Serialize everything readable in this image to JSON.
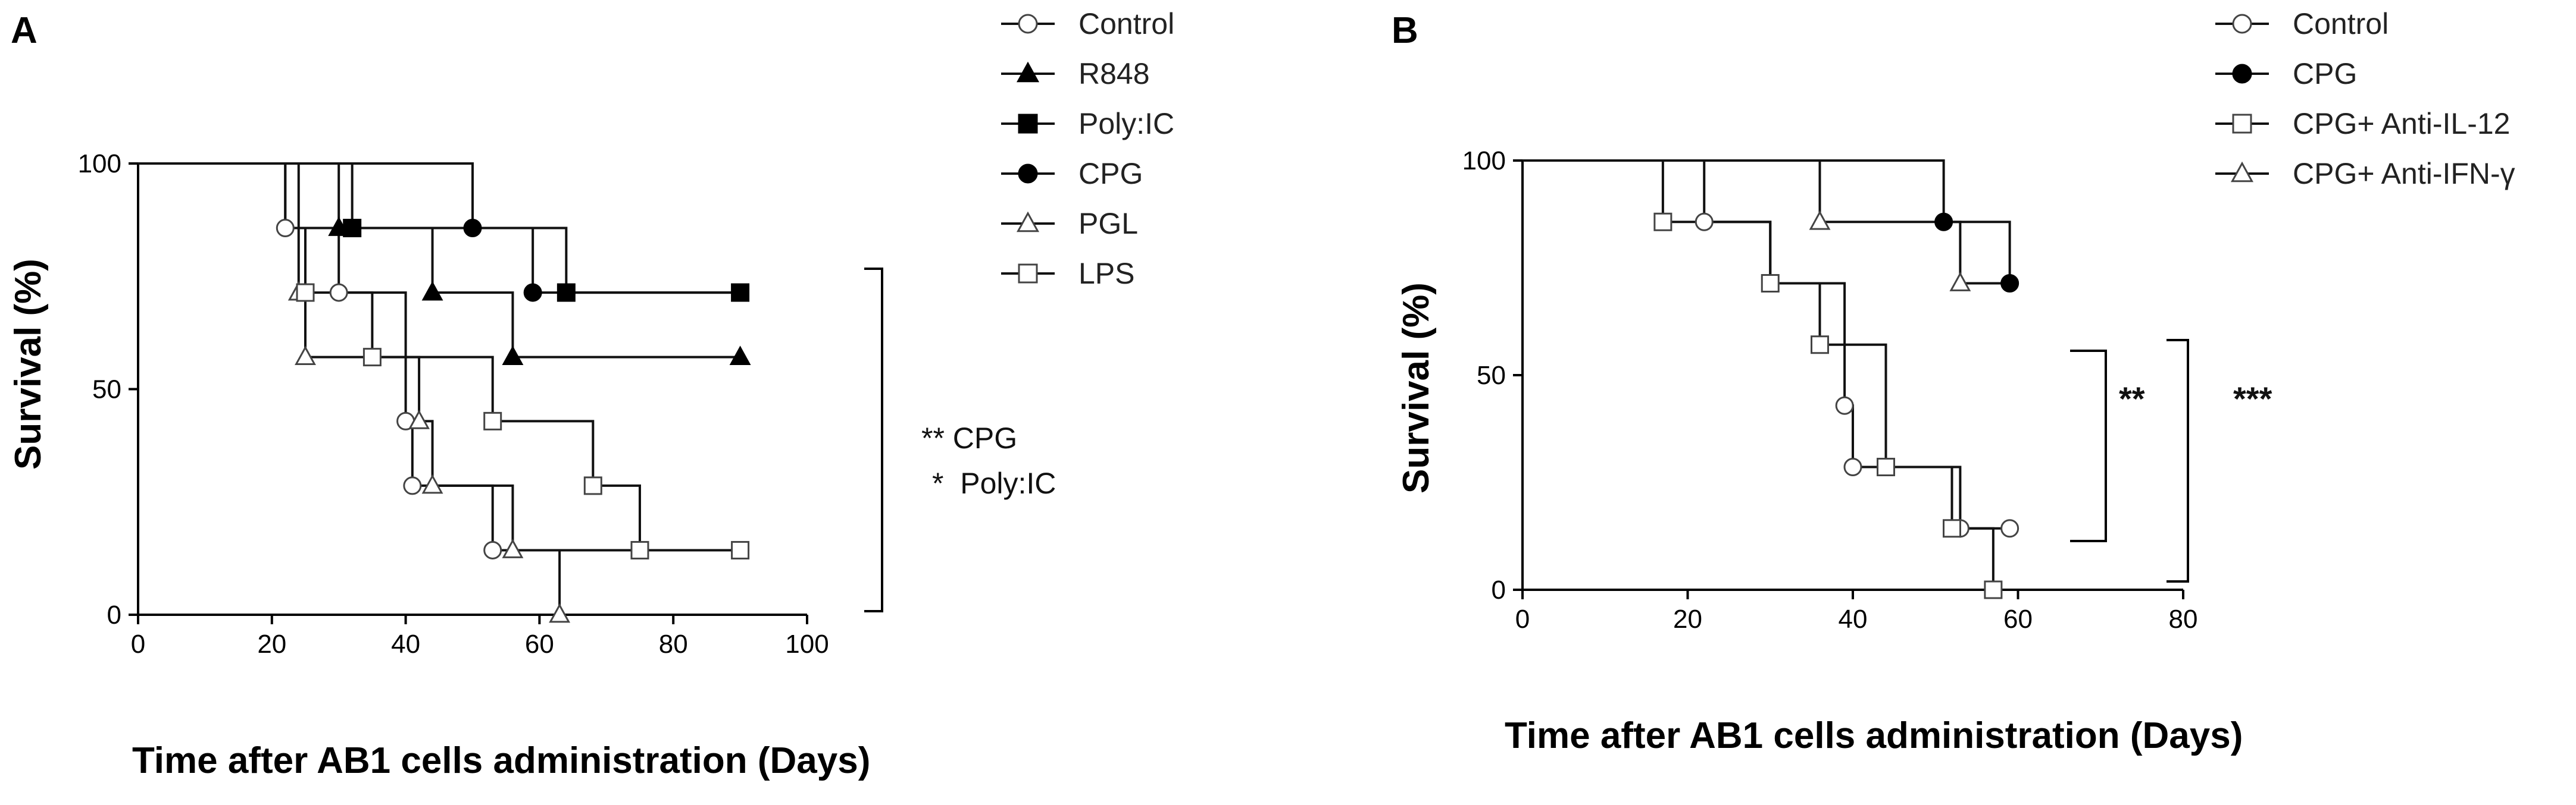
{
  "chart_data": [
    {
      "type": "line",
      "panel_label": "A",
      "xlabel": "Time after AB1 cells administration (Days)",
      "ylabel": "Survival (%)",
      "xlim": [
        0,
        100
      ],
      "ylim": [
        0,
        100
      ],
      "xticks": [
        0,
        20,
        40,
        60,
        80,
        100
      ],
      "yticks": [
        0,
        50,
        100
      ],
      "step": true,
      "legend_position": "top-right",
      "series": [
        {
          "name": "Control",
          "marker": "circle-open",
          "x": [
            0,
            22,
            30,
            40,
            41,
            53,
            90
          ],
          "y": [
            100,
            85.7,
            71.4,
            42.9,
            28.6,
            14.3,
            14.3
          ],
          "marker_points": [
            [
              22,
              85.7
            ],
            [
              30,
              71.4
            ],
            [
              40,
              42.9
            ],
            [
              41,
              28.6
            ],
            [
              53,
              14.3
            ],
            [
              90,
              14.3
            ]
          ]
        },
        {
          "name": "R848",
          "marker": "triangle-filled",
          "x": [
            0,
            30,
            44,
            56,
            90
          ],
          "y": [
            100,
            85.7,
            71.4,
            57.1,
            57.1
          ],
          "marker_points": [
            [
              30,
              85.7
            ],
            [
              44,
              71.4
            ],
            [
              56,
              57.1
            ],
            [
              90,
              57.1
            ]
          ]
        },
        {
          "name": "Poly:IC",
          "marker": "square-filled",
          "x": [
            0,
            32,
            64,
            90
          ],
          "y": [
            100,
            85.7,
            71.4,
            71.4
          ],
          "marker_points": [
            [
              32,
              85.7
            ],
            [
              64,
              71.4
            ],
            [
              90,
              71.4
            ]
          ]
        },
        {
          "name": "CPG",
          "marker": "circle-filled",
          "x": [
            0,
            50,
            59,
            90
          ],
          "y": [
            100,
            85.7,
            71.4,
            71.4
          ],
          "marker_points": [
            [
              50,
              85.7
            ],
            [
              59,
              71.4
            ]
          ]
        },
        {
          "name": "PGL",
          "marker": "triangle-open",
          "x": [
            0,
            24,
            25,
            42,
            44,
            56,
            63
          ],
          "y": [
            100,
            71.4,
            57.1,
            42.9,
            28.6,
            14.3,
            0
          ],
          "marker_points": [
            [
              24,
              71.4
            ],
            [
              25,
              57.1
            ],
            [
              42,
              42.9
            ],
            [
              44,
              28.6
            ],
            [
              56,
              14.3
            ],
            [
              63,
              0
            ]
          ]
        },
        {
          "name": "LPS",
          "marker": "square-open",
          "x": [
            0,
            22,
            25,
            35,
            53,
            68,
            75,
            90
          ],
          "y": [
            100,
            85.7,
            71.4,
            57.1,
            42.9,
            28.6,
            14.3,
            14.3
          ],
          "marker_points": [
            [
              25,
              71.4
            ],
            [
              35,
              57.1
            ],
            [
              53,
              42.9
            ],
            [
              68,
              28.6
            ],
            [
              75,
              14.3
            ],
            [
              90,
              14.3
            ]
          ]
        }
      ],
      "annotations": [
        "** CPG",
        "*  Poly:IC"
      ]
    },
    {
      "type": "line",
      "panel_label": "B",
      "xlabel": "Time after AB1 cells administration (Days)",
      "ylabel": "Survival  (%)",
      "xlim": [
        0,
        80
      ],
      "ylim": [
        0,
        100
      ],
      "xticks": [
        0,
        20,
        40,
        60,
        80
      ],
      "yticks": [
        0,
        50,
        100
      ],
      "step": true,
      "legend_position": "top-right",
      "series": [
        {
          "name": "Control",
          "marker": "circle-open",
          "x": [
            0,
            22,
            30,
            39,
            40,
            53,
            59
          ],
          "y": [
            100,
            85.7,
            71.4,
            42.9,
            28.6,
            14.3,
            14.3
          ],
          "marker_points": [
            [
              22,
              85.7
            ],
            [
              39,
              42.9
            ],
            [
              40,
              28.6
            ],
            [
              53,
              14.3
            ],
            [
              59,
              14.3
            ]
          ]
        },
        {
          "name": "CPG",
          "marker": "circle-filled",
          "x": [
            0,
            51,
            59
          ],
          "y": [
            100,
            85.7,
            71.4
          ],
          "marker_points": [
            [
              51,
              85.7
            ],
            [
              59,
              71.4
            ]
          ]
        },
        {
          "name": "CPG+ Anti-IL-12",
          "marker": "square-open",
          "x": [
            0,
            17,
            30,
            36,
            44,
            52,
            57
          ],
          "y": [
            100,
            85.7,
            71.4,
            57.1,
            28.6,
            14.3,
            0
          ],
          "marker_points": [
            [
              17,
              85.7
            ],
            [
              30,
              71.4
            ],
            [
              36,
              57.1
            ],
            [
              44,
              28.6
            ],
            [
              52,
              14.3
            ],
            [
              57,
              0
            ]
          ]
        },
        {
          "name": "CPG+ Anti-IFN-γ",
          "marker": "triangle-open",
          "x": [
            0,
            36,
            53,
            59
          ],
          "y": [
            100,
            85.7,
            71.4,
            71.4
          ],
          "marker_points": [
            [
              36,
              85.7
            ],
            [
              53,
              71.4
            ]
          ]
        }
      ],
      "annotations": [
        "**",
        "***"
      ]
    }
  ]
}
